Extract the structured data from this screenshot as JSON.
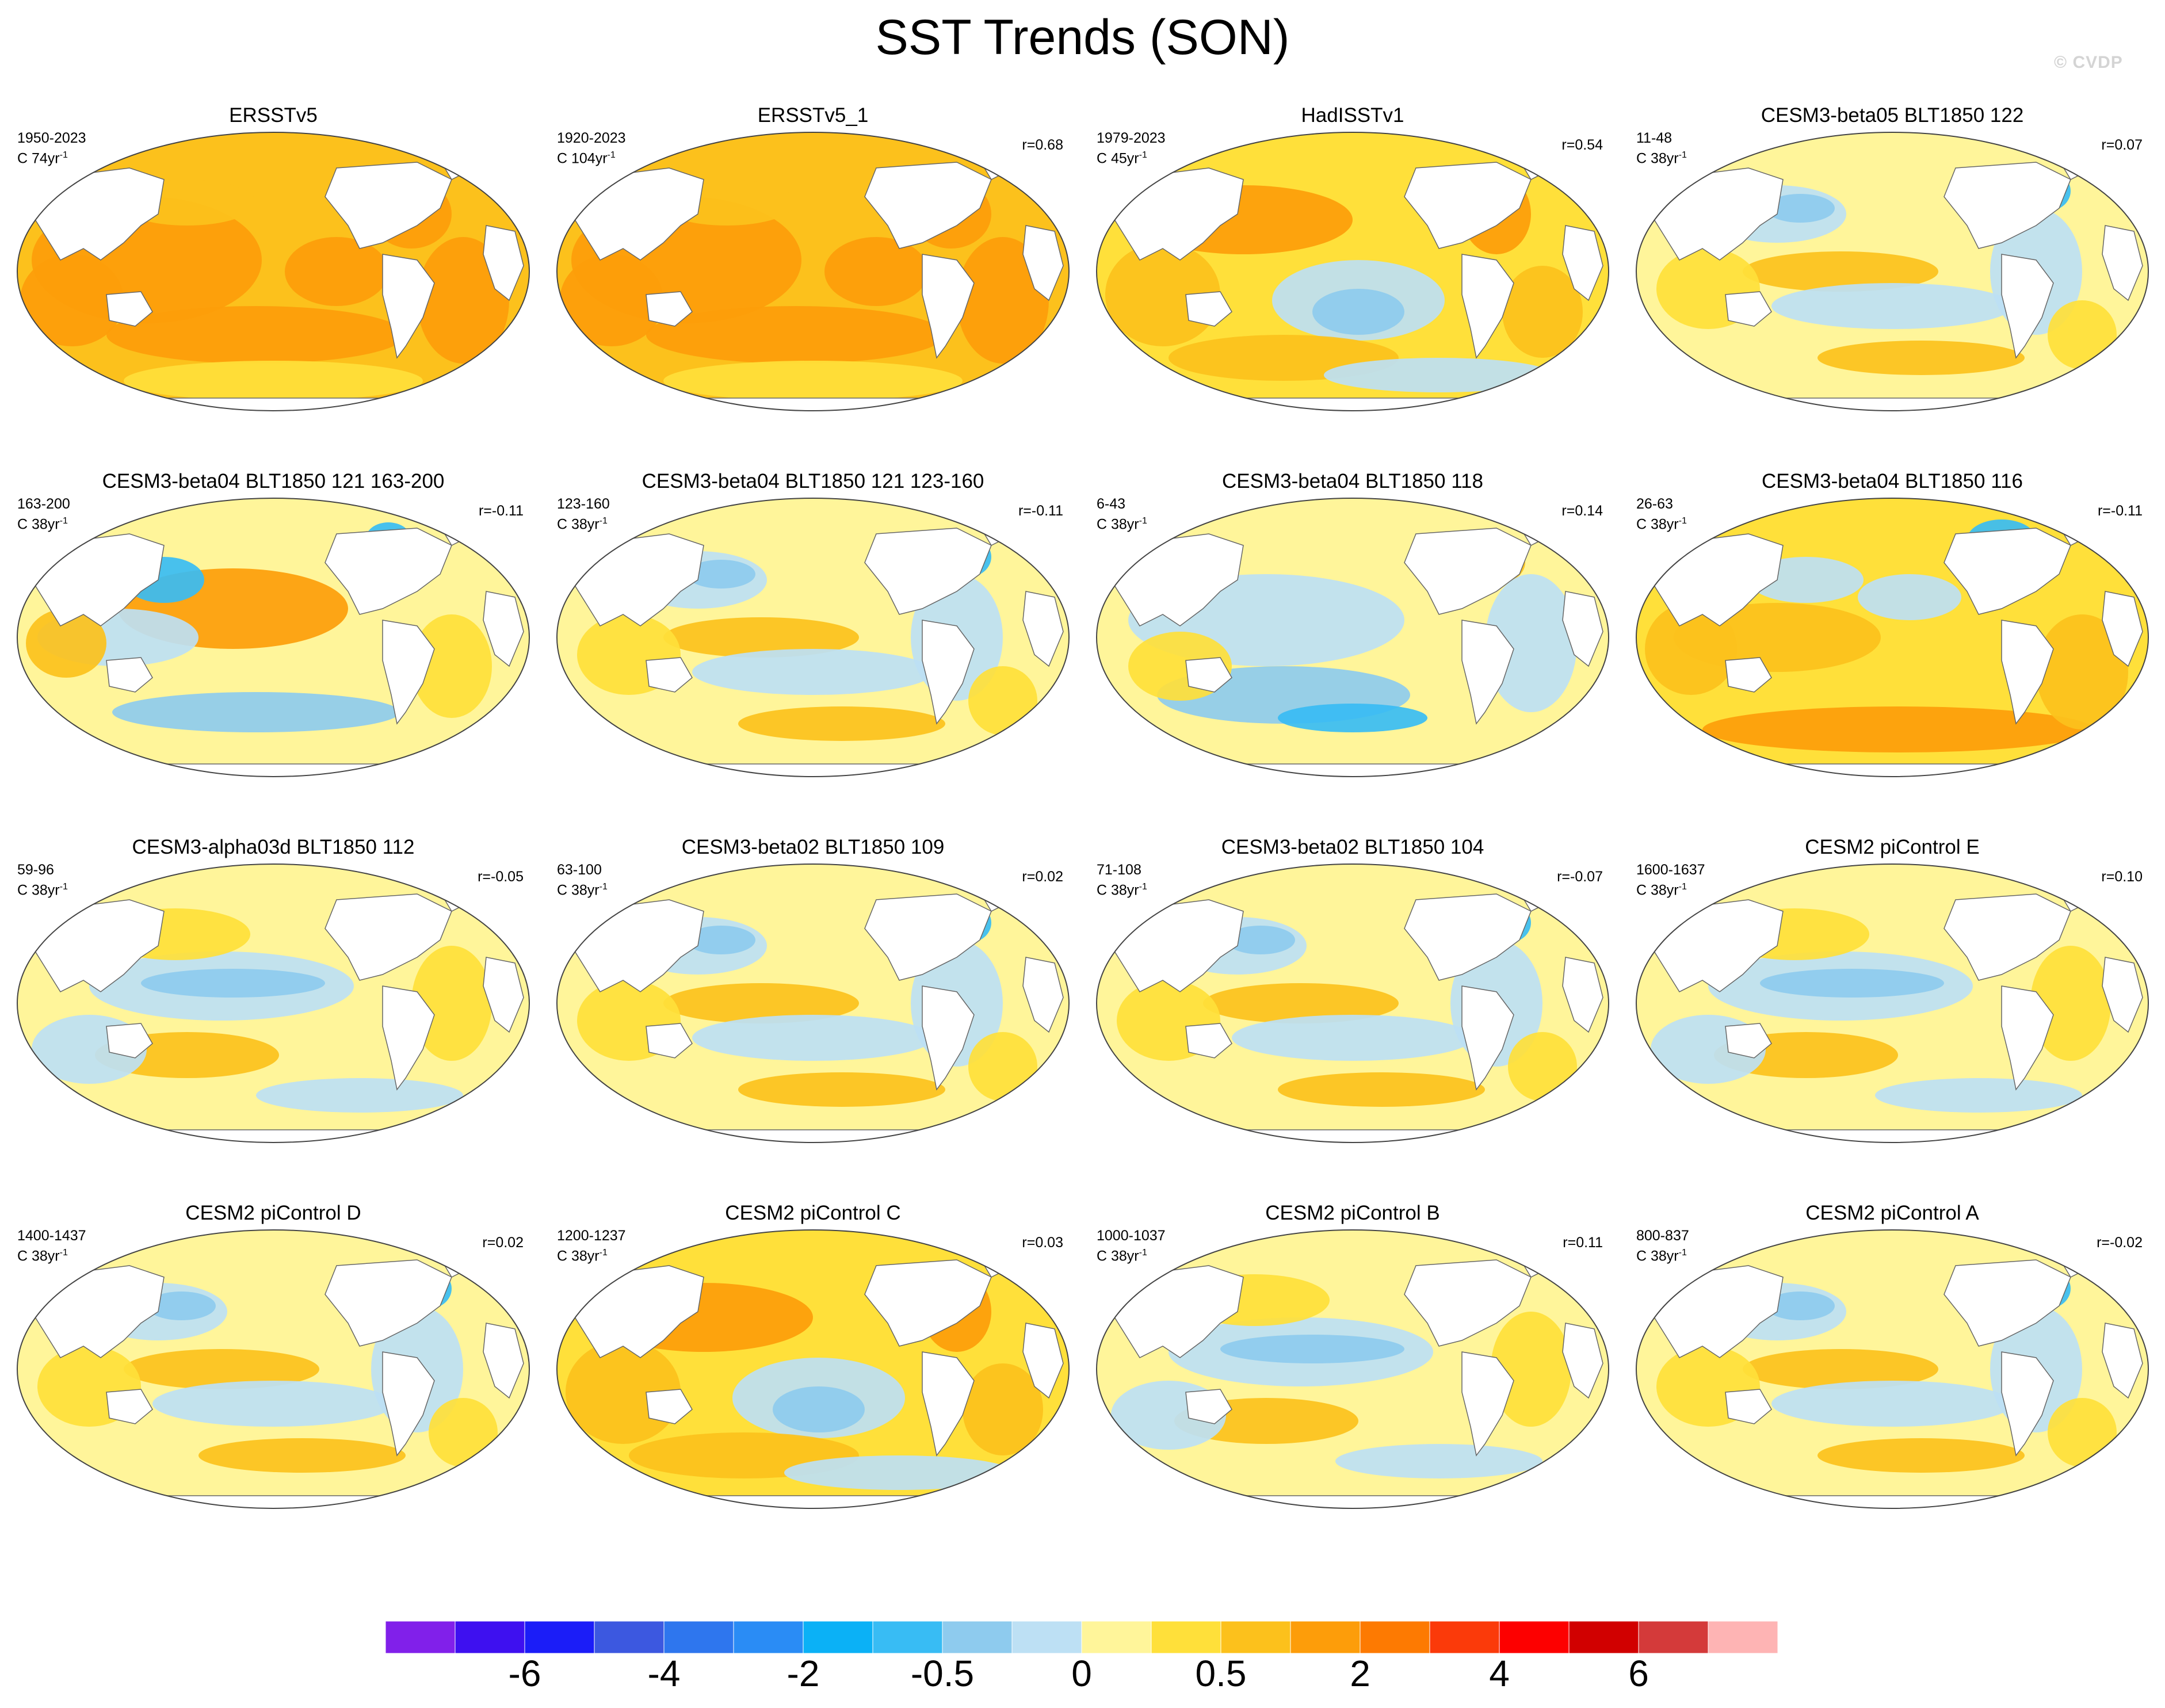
{
  "title": "SST Trends (SON)",
  "watermark": "© CVDP",
  "units_superscript": "-1",
  "palette": {
    "deep_purple": "#8120ea",
    "blue_violet": "#3e10f0",
    "royal_blue": "#1b1df8",
    "medium_blue": "#3c58e0",
    "mid_blue": "#2e76ee",
    "bright_blue": "#2a8cf5",
    "azure": "#0bb1f6",
    "sky_blue": "#38bcf4",
    "light_blue": "#8ecbee",
    "pale_blue": "#bde0f4",
    "pale_yellow": "#fff59a",
    "yellow": "#ffe03a",
    "gold": "#fcc11c",
    "orange": "#fd9d0a",
    "dark_orange": "#fd7a02",
    "red_orange": "#fb3a0a",
    "red": "#fd0000",
    "crimson": "#d10000",
    "brick": "#d43a3a",
    "pink": "#feb4b4",
    "land": "#ffffff",
    "coast": "#666666"
  },
  "colorbar": {
    "colors": [
      "#8120ea",
      "#3e10f0",
      "#1b1df8",
      "#3c58e0",
      "#2e76ee",
      "#2a8cf5",
      "#0bb1f6",
      "#38bcf4",
      "#8ecbee",
      "#bde0f4",
      "#fff59a",
      "#ffe03a",
      "#fcc11c",
      "#fd9d0a",
      "#fd7a02",
      "#fb3a0a",
      "#fd0000",
      "#d10000",
      "#d43a3a",
      "#feb4b4"
    ],
    "labels": [
      "-6",
      "-4",
      "-2",
      "-0.5",
      "0",
      "0.5",
      "2",
      "4",
      "6"
    ]
  },
  "panels": [
    {
      "title": "ERSSTv5",
      "years": "1950-2023",
      "units": "C 74yr",
      "r": "",
      "tone": "warm-strong"
    },
    {
      "title": "ERSSTv5_1",
      "years": "1920-2023",
      "units": "C 104yr",
      "r": "r=0.68",
      "tone": "warm-strong"
    },
    {
      "title": "HadISSTv1",
      "years": "1979-2023",
      "units": "C 45yr",
      "r": "r=0.54",
      "tone": "warm-mixed"
    },
    {
      "title": "CESM3-beta05 BLT1850 122",
      "years": "11-48",
      "units": "C 38yr",
      "r": "r=0.07",
      "tone": "mixed"
    },
    {
      "title": "CESM3-beta04 BLT1850 121 163-200",
      "years": "163-200",
      "units": "C 38yr",
      "r": "r=-0.11",
      "tone": "warm-pacific"
    },
    {
      "title": "CESM3-beta04 BLT1850 121 123-160",
      "years": "123-160",
      "units": "C 38yr",
      "r": "r=-0.11",
      "tone": "mixed"
    },
    {
      "title": "CESM3-beta04 BLT1850 118",
      "years": "6-43",
      "units": "C 38yr",
      "r": "r=0.14",
      "tone": "cool-mixed"
    },
    {
      "title": "CESM3-beta04 BLT1850 116",
      "years": "26-63",
      "units": "C 38yr",
      "r": "r=-0.11",
      "tone": "warm-south"
    },
    {
      "title": "CESM3-alpha03d BLT1850 112",
      "years": "59-96",
      "units": "C 38yr",
      "r": "r=-0.05",
      "tone": "cool-pacific"
    },
    {
      "title": "CESM3-beta02 BLT1850 109",
      "years": "63-100",
      "units": "C 38yr",
      "r": "r=0.02",
      "tone": "mixed"
    },
    {
      "title": "CESM3-beta02 BLT1850 104",
      "years": "71-108",
      "units": "C 38yr",
      "r": "r=-0.07",
      "tone": "mixed"
    },
    {
      "title": "CESM2 piControl E",
      "years": "1600-1637",
      "units": "C 38yr",
      "r": "r=0.10",
      "tone": "cool-pacific"
    },
    {
      "title": "CESM2 piControl D",
      "years": "1400-1437",
      "units": "C 38yr",
      "r": "r=0.02",
      "tone": "mixed"
    },
    {
      "title": "CESM2 piControl C",
      "years": "1200-1237",
      "units": "C 38yr",
      "r": "r=0.03",
      "tone": "warm-mixed"
    },
    {
      "title": "CESM2 piControl B",
      "years": "1000-1037",
      "units": "C 38yr",
      "r": "r=0.11",
      "tone": "cool-pacific"
    },
    {
      "title": "CESM2 piControl A",
      "years": "800-837",
      "units": "C 38yr",
      "r": "r=-0.02",
      "tone": "mixed"
    }
  ]
}
